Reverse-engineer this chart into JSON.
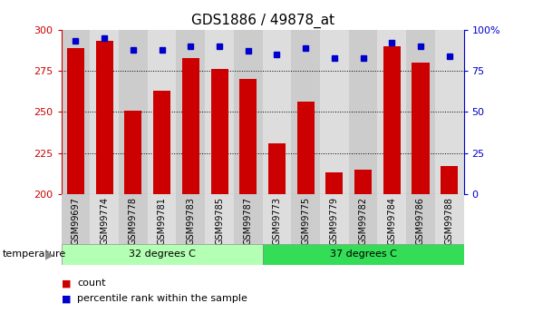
{
  "title": "GDS1886 / 49878_at",
  "samples": [
    "GSM99697",
    "GSM99774",
    "GSM99778",
    "GSM99781",
    "GSM99783",
    "GSM99785",
    "GSM99787",
    "GSM99773",
    "GSM99775",
    "GSM99779",
    "GSM99782",
    "GSM99784",
    "GSM99786",
    "GSM99788"
  ],
  "counts": [
    289,
    293,
    251,
    263,
    283,
    276,
    270,
    231,
    256,
    213,
    215,
    290,
    280,
    217
  ],
  "percentiles": [
    93,
    95,
    88,
    88,
    90,
    90,
    87,
    85,
    89,
    83,
    83,
    92,
    90,
    84
  ],
  "groups": [
    {
      "label": "32 degrees C",
      "start": 0,
      "end": 7,
      "color": "#b3ffb3"
    },
    {
      "label": "37 degrees C",
      "start": 7,
      "end": 14,
      "color": "#33dd55"
    }
  ],
  "ymin": 200,
  "ymax": 300,
  "yticks": [
    200,
    225,
    250,
    275,
    300
  ],
  "right_yticks": [
    0,
    25,
    50,
    75,
    100
  ],
  "bar_color": "#cc0000",
  "dot_color": "#0000cc",
  "bar_width": 0.6,
  "bg_col_even": "#cccccc",
  "bg_col_odd": "#dddddd",
  "background_color": "#ffffff",
  "title_fontsize": 11,
  "axis_label_color_left": "#cc0000",
  "axis_label_color_right": "#0000cc",
  "grid_lines": [
    225,
    250,
    275
  ]
}
